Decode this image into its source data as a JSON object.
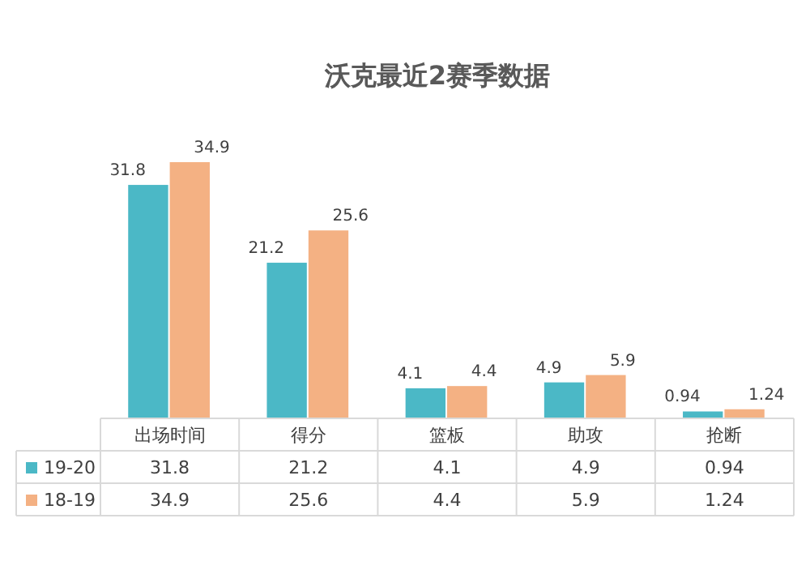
{
  "chart_data": {
    "type": "bar",
    "title": "沃克最近2赛季数据",
    "categories": [
      "出场时间",
      "得分",
      "篮板",
      "助攻",
      "抢断"
    ],
    "series": [
      {
        "name": "19-20",
        "color": "#4bb8c6",
        "values": [
          31.8,
          21.2,
          4.1,
          4.9,
          0.94
        ],
        "value_labels": [
          "31.8",
          "21.2",
          "4.1",
          "4.9",
          "0.94"
        ]
      },
      {
        "name": "18-19",
        "color": "#f4b183",
        "values": [
          34.9,
          25.6,
          4.4,
          5.9,
          1.24
        ],
        "value_labels": [
          "34.9",
          "25.6",
          "4.4",
          "5.9",
          "1.24"
        ]
      }
    ],
    "annotations": [
      "31.8",
      "21.2",
      "4.1",
      "4.9",
      "0.94",
      "34.9",
      "25.6",
      "4.4",
      "5.9",
      "1.24"
    ],
    "legend": "bottom"
  }
}
